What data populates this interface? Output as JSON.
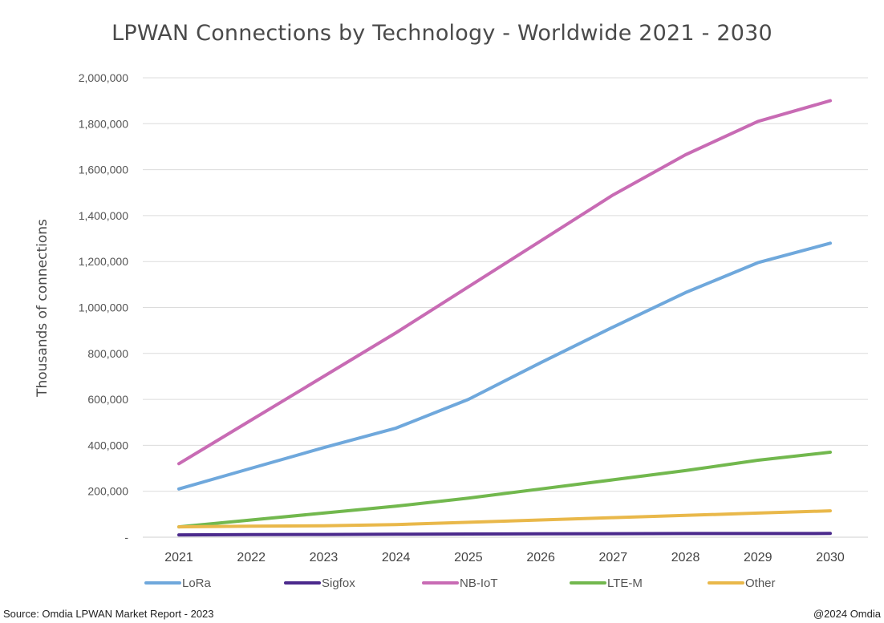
{
  "chart_data": {
    "type": "line",
    "title": "LPWAN Connections by Technology - Worldwide 2021 - 2030",
    "xlabel": "",
    "ylabel": "Thousands of connections",
    "x": [
      "2021",
      "2022",
      "2023",
      "2024",
      "2025",
      "2026",
      "2027",
      "2028",
      "2029",
      "2030"
    ],
    "ylim": [
      0,
      2000000
    ],
    "yticks": [
      0,
      200000,
      400000,
      600000,
      800000,
      1000000,
      1200000,
      1400000,
      1600000,
      1800000,
      2000000
    ],
    "ytick_labels": [
      "-",
      "200,000",
      "400,000",
      "600,000",
      "800,000",
      "1,000,000",
      "1,200,000",
      "1,400,000",
      "1,600,000",
      "1,800,000",
      "2,000,000"
    ],
    "grid": "horizontal",
    "legend_position": "bottom",
    "series": [
      {
        "name": "LoRa",
        "color": "#6fa8dc",
        "values": [
          210000,
          300000,
          390000,
          475000,
          600000,
          760000,
          915000,
          1065000,
          1195000,
          1280000
        ]
      },
      {
        "name": "Sigfox",
        "color": "#4b2a8c",
        "values": [
          10000,
          11000,
          12000,
          13000,
          14000,
          15000,
          15500,
          16000,
          16000,
          16500
        ]
      },
      {
        "name": "NB-IoT",
        "color": "#c86bb4",
        "values": [
          320000,
          510000,
          700000,
          890000,
          1090000,
          1290000,
          1490000,
          1665000,
          1810000,
          1900000
        ]
      },
      {
        "name": "LTE-M",
        "color": "#72b84e",
        "values": [
          45000,
          75000,
          105000,
          135000,
          170000,
          210000,
          250000,
          290000,
          335000,
          370000
        ]
      },
      {
        "name": "Other",
        "color": "#e9b84a",
        "values": [
          45000,
          48000,
          50000,
          55000,
          65000,
          75000,
          85000,
          95000,
          105000,
          115000
        ]
      }
    ]
  },
  "footer": {
    "source": "Source: Omdia LPWAN Market Report - 2023",
    "copyright": "@2024 Omdia"
  }
}
